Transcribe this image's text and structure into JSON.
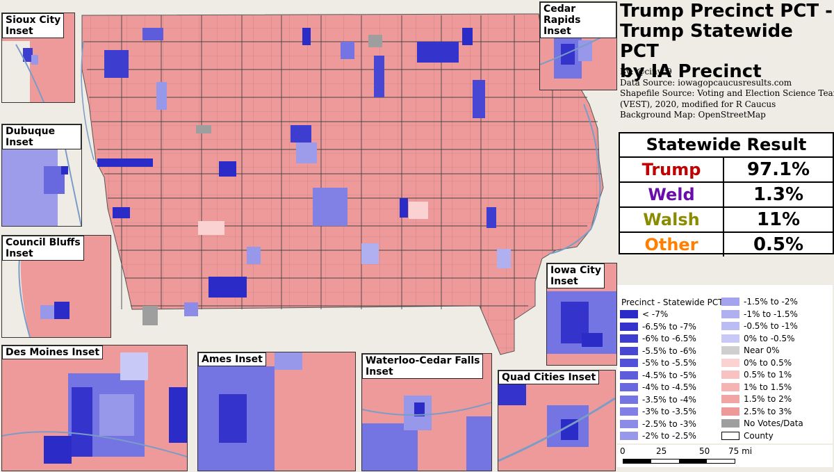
{
  "title": "Trump Precinct PCT -\nTrump Statewide PCT\nby IA Precinct",
  "credits": {
    "by": "By: @cinyc9",
    "data_source": "Data Source: iowagopcaucusresults.com",
    "shapefile_1": "Shapefile Source: Voting and Election Science Team",
    "shapefile_2": "(VEST), 2020, modified for R Caucus",
    "background": "Background Map: OpenStreetMap"
  },
  "statewide": {
    "header": "Statewide Result",
    "rows": [
      {
        "name": "Trump",
        "pct": "97.1%",
        "color": "#c00000"
      },
      {
        "name": "Weld",
        "pct": "1.3%",
        "color": "#6a0dad"
      },
      {
        "name": "Walsh",
        "pct": "11%",
        "color": "#8b8b00"
      },
      {
        "name": "Other",
        "pct": "0.5%",
        "color": "#ff8000"
      }
    ]
  },
  "insets": {
    "sioux_city": "Sioux City\nInset",
    "cedar_rapids": "Cedar Rapids\nInset",
    "dubuque": "Dubuque Inset",
    "council_bluffs": "Council Bluffs\nInset",
    "iowa_city": "Iowa City\nInset",
    "des_moines": "Des Moines Inset",
    "ames": "Ames Inset",
    "waterloo": "Waterloo-Cedar Falls\nInset",
    "quad_cities": "Quad Cities Inset"
  },
  "legend": {
    "title": "Precinct - Statewide PCT",
    "left": [
      {
        "label": "< -7%",
        "color": "#2b2bc8"
      },
      {
        "label": "-6.5% to -7%",
        "color": "#3434cc"
      },
      {
        "label": "-6% to -6.5%",
        "color": "#3d3dd0"
      },
      {
        "label": "-5.5% to -6%",
        "color": "#4747d4"
      },
      {
        "label": "-5% to -5.5%",
        "color": "#5252d8"
      },
      {
        "label": "-4.5% to -5%",
        "color": "#5d5ddc"
      },
      {
        "label": "-4% to -4.5%",
        "color": "#6868df"
      },
      {
        "label": "-3.5% to -4%",
        "color": "#7474e2"
      },
      {
        "label": "-3% to -3.5%",
        "color": "#8080e5"
      },
      {
        "label": "-2.5% to -3%",
        "color": "#8c8ce8"
      },
      {
        "label": "-2% to -2.5%",
        "color": "#9898eb"
      }
    ],
    "right": [
      {
        "label": "-1.5% to -2%",
        "color": "#a4a4ee"
      },
      {
        "label": "-1% to -1.5%",
        "color": "#b0b0f1"
      },
      {
        "label": "-0.5% to -1%",
        "color": "#bcbcf4"
      },
      {
        "label": "0% to -0.5%",
        "color": "#c9c9f7"
      },
      {
        "label": "Near 0%",
        "color": "#cfcfcf"
      },
      {
        "label": "0% to 0.5%",
        "color": "#fbd2d2"
      },
      {
        "label": "0.5% to 1%",
        "color": "#f8c2c2"
      },
      {
        "label": "1% to 1.5%",
        "color": "#f5b3b3"
      },
      {
        "label": "1.5% to 2%",
        "color": "#f1a4a4"
      },
      {
        "label": "2.5% to 3%",
        "color": "#ee9a9a"
      },
      {
        "label": "No Votes/Data",
        "color": "#9e9e9e"
      },
      {
        "label": "County",
        "color": "#ffffff"
      }
    ]
  },
  "scale": {
    "ticks": [
      "0",
      "25",
      "50",
      "75 mi"
    ]
  },
  "colors": {
    "base_red": "#ee9a9a",
    "deep_blue": "#2b2bc8",
    "light_blue": "#9c9cea",
    "grey": "#a8a8a8"
  }
}
